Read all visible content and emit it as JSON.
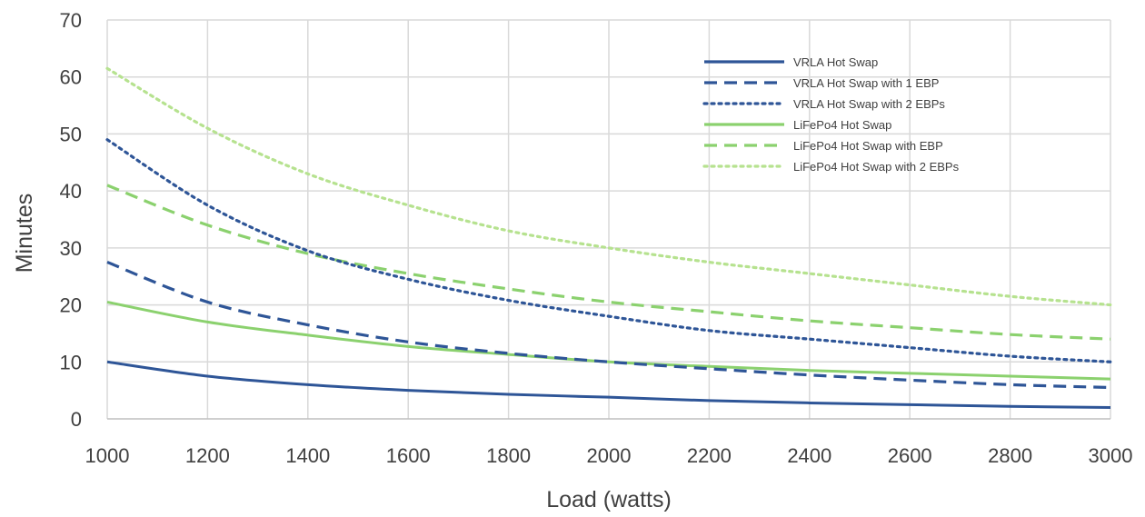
{
  "chart_data": {
    "type": "line",
    "title": "",
    "xlabel": "Load (watts)",
    "ylabel": "Minutes",
    "xlim": [
      1000,
      3000
    ],
    "ylim": [
      0,
      70
    ],
    "x_ticks": [
      1000,
      1200,
      1400,
      1600,
      1800,
      2000,
      2200,
      2400,
      2600,
      2800,
      3000
    ],
    "y_ticks": [
      0,
      10,
      20,
      30,
      40,
      50,
      60,
      70
    ],
    "grid": true,
    "legend_position": "top-right",
    "x": [
      1000,
      1200,
      1400,
      1600,
      1800,
      2000,
      2200,
      2400,
      2600,
      2800,
      3000
    ],
    "series": [
      {
        "name": "VRLA Hot Swap",
        "color": "#2e5597",
        "line_style": "solid",
        "values": [
          10,
          7.5,
          6,
          5,
          4.3,
          3.8,
          3.2,
          2.8,
          2.5,
          2.2,
          2
        ]
      },
      {
        "name": "VRLA Hot Swap with 1 EBP",
        "color": "#2e5597",
        "line_style": "dashed",
        "values": [
          27.5,
          20.5,
          16.5,
          13.5,
          11.5,
          10,
          8.8,
          7.7,
          6.8,
          6,
          5.5
        ]
      },
      {
        "name": "VRLA Hot Swap with 2 EBPs",
        "color": "#2e5597",
        "line_style": "dotted",
        "values": [
          49,
          37.5,
          29.5,
          24.5,
          20.8,
          18,
          15.5,
          14,
          12.5,
          11,
          10
        ]
      },
      {
        "name": "LiFePo4 Hot Swap",
        "color": "#8bd16e",
        "line_style": "solid",
        "values": [
          20.5,
          17,
          14.7,
          12.7,
          11.3,
          10,
          9.2,
          8.5,
          8,
          7.5,
          7
        ]
      },
      {
        "name": "LiFePo4 Hot Swap with EBP",
        "color": "#8bd16e",
        "line_style": "dashed",
        "values": [
          41,
          34,
          29,
          25.5,
          22.8,
          20.5,
          18.8,
          17.2,
          16,
          14.8,
          14
        ]
      },
      {
        "name": "LiFePo4 Hot Swap with 2 EBPs",
        "color": "#b6e28f",
        "line_style": "dotted",
        "values": [
          61.5,
          51,
          43,
          37.5,
          33,
          30,
          27.5,
          25.5,
          23.5,
          21.5,
          20
        ]
      }
    ]
  }
}
